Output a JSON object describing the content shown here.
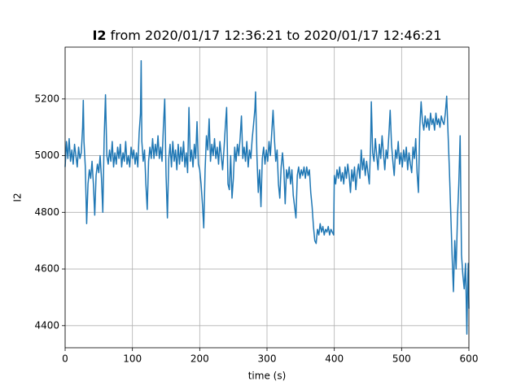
{
  "chart_data": {
    "type": "line",
    "title_bold": "I2",
    "title": "from 2020/01/17 12:36:21 to 2020/01/17 12:46:21",
    "x_label": "time (s)",
    "y_label": "I2",
    "xlim": [
      0,
      600
    ],
    "xticks": [
      0,
      100,
      200,
      300,
      400,
      500,
      600
    ],
    "ylim": [
      4322,
      5383
    ],
    "yticks": [
      4400,
      4600,
      4800,
      5000,
      5200
    ],
    "grid": true,
    "x": [
      0,
      2,
      4,
      6,
      8,
      10,
      12,
      14,
      16,
      18,
      20,
      22,
      24,
      26,
      27,
      28,
      30,
      32,
      34,
      36,
      38,
      40,
      42,
      44,
      46,
      48,
      50,
      52,
      54,
      56,
      58,
      60,
      62,
      64,
      66,
      68,
      70,
      72,
      74,
      76,
      78,
      80,
      82,
      84,
      86,
      88,
      90,
      92,
      94,
      96,
      98,
      100,
      102,
      104,
      106,
      108,
      110,
      112,
      113,
      114,
      116,
      118,
      120,
      122,
      124,
      126,
      128,
      130,
      132,
      134,
      136,
      138,
      140,
      142,
      144,
      146,
      148,
      150,
      152,
      154,
      156,
      158,
      160,
      162,
      164,
      166,
      168,
      170,
      172,
      174,
      176,
      178,
      180,
      182,
      184,
      186,
      188,
      190,
      192,
      194,
      196,
      198,
      200,
      202,
      204,
      206,
      208,
      210,
      212,
      214,
      216,
      218,
      220,
      222,
      224,
      226,
      228,
      230,
      232,
      234,
      236,
      238,
      240,
      242,
      244,
      246,
      248,
      250,
      252,
      254,
      256,
      258,
      260,
      262,
      264,
      266,
      268,
      270,
      272,
      274,
      276,
      278,
      280,
      282,
      283,
      285,
      287,
      289,
      291,
      293,
      295,
      297,
      299,
      301,
      303,
      305,
      307,
      309,
      311,
      313,
      315,
      317,
      319,
      321,
      323,
      325,
      327,
      329,
      331,
      333,
      335,
      337,
      339,
      341,
      343,
      345,
      347,
      349,
      351,
      353,
      355,
      357,
      359,
      361,
      363,
      365,
      367,
      369,
      371,
      373,
      375,
      377,
      379,
      381,
      383,
      385,
      387,
      389,
      391,
      393,
      395,
      397,
      399,
      400,
      402,
      404,
      406,
      408,
      410,
      412,
      414,
      416,
      418,
      420,
      422,
      424,
      426,
      428,
      430,
      432,
      434,
      436,
      438,
      440,
      442,
      444,
      446,
      448,
      450,
      452,
      454,
      455,
      457,
      459,
      461,
      463,
      465,
      467,
      469,
      471,
      473,
      475,
      477,
      479,
      481,
      483,
      485,
      487,
      489,
      491,
      493,
      495,
      497,
      499,
      501,
      503,
      505,
      507,
      509,
      511,
      513,
      515,
      517,
      519,
      521,
      523,
      525,
      527,
      529,
      531,
      533,
      535,
      537,
      539,
      541,
      543,
      545,
      547,
      549,
      551,
      553,
      555,
      557,
      559,
      561,
      563,
      565,
      567,
      569,
      571,
      573,
      575,
      577,
      579,
      581,
      583,
      585,
      587,
      589,
      591,
      593,
      595,
      597,
      598,
      599,
      600
    ],
    "series": [
      {
        "name": "I2",
        "color": "#1f77b4",
        "values": [
          4960,
          5050,
          4990,
          5060,
          4980,
          5020,
          4970,
          5040,
          5000,
          4960,
          5030,
          4990,
          5010,
          5100,
          5195,
          5050,
          4960,
          4760,
          4900,
          4950,
          4920,
          4980,
          4900,
          4790,
          4930,
          4970,
          4940,
          5000,
          4920,
          4800,
          5060,
          5215,
          5000,
          4970,
          5020,
          4980,
          5050,
          4960,
          5010,
          4970,
          5030,
          4990,
          5040,
          4960,
          5010,
          4980,
          5050,
          4970,
          5000,
          4960,
          5030,
          4990,
          5020,
          4970,
          5010,
          4960,
          5080,
          5150,
          5335,
          5050,
          4980,
          5020,
          4900,
          4810,
          4980,
          5030,
          4990,
          5060,
          4990,
          5040,
          5000,
          5070,
          4990,
          5030,
          4980,
          5100,
          5200,
          4930,
          4780,
          4990,
          5040,
          4960,
          5050,
          4980,
          5020,
          4950,
          5040,
          4970,
          5030,
          4980,
          5050,
          4960,
          5010,
          4940,
          5170,
          4980,
          5020,
          4960,
          5040,
          4990,
          5120,
          4970,
          4950,
          4900,
          4830,
          4745,
          4950,
          5070,
          5020,
          5130,
          4980,
          5040,
          5000,
          5060,
          4990,
          5030,
          4970,
          5050,
          5000,
          4950,
          5020,
          5100,
          5170,
          4900,
          4880,
          5000,
          4850,
          4920,
          5030,
          4980,
          5040,
          5000,
          5060,
          5140,
          4990,
          5030,
          4980,
          5050,
          4960,
          5020,
          4990,
          5060,
          5110,
          5165,
          5225,
          5000,
          4870,
          4950,
          4820,
          4990,
          5030,
          4970,
          5020,
          4980,
          5050,
          5000,
          5080,
          5160,
          5060,
          4980,
          5020,
          4900,
          4850,
          4960,
          5010,
          4950,
          4830,
          4950,
          4920,
          4960,
          4900,
          4950,
          4860,
          4820,
          4780,
          4930,
          4960,
          4920,
          4950,
          4930,
          4960,
          4920,
          4960,
          4930,
          4950,
          4870,
          4820,
          4750,
          4700,
          4690,
          4740,
          4720,
          4760,
          4730,
          4750,
          4720,
          4740,
          4730,
          4750,
          4720,
          4740,
          4730,
          4720,
          4930,
          4900,
          4950,
          4920,
          4960,
          4910,
          4940,
          4900,
          4960,
          4920,
          4970,
          4930,
          4870,
          4950,
          4910,
          4960,
          4880,
          4940,
          4970,
          4920,
          5020,
          4950,
          4990,
          4930,
          4980,
          4940,
          4900,
          5040,
          5190,
          5010,
          4980,
          5060,
          5000,
          4950,
          5040,
          4990,
          5070,
          5010,
          4950,
          5020,
          4990,
          5070,
          5160,
          5040,
          4980,
          4930,
          5020,
          4990,
          5050,
          4970,
          5010,
          4960,
          5020,
          4980,
          5030,
          4950,
          5010,
          4970,
          4940,
          5030,
          4990,
          5060,
          4940,
          4870,
          5100,
          5190,
          5120,
          5090,
          5140,
          5100,
          5130,
          5090,
          5150,
          5110,
          5130,
          5090,
          5150,
          5110,
          5130,
          5100,
          5140,
          5120,
          5110,
          5150,
          5210,
          5080,
          4950,
          4800,
          4650,
          4520,
          4700,
          4600,
          4780,
          4900,
          5070,
          4650,
          4580,
          4530,
          4620,
          4370,
          4540,
          4620,
          4460
        ]
      }
    ]
  }
}
